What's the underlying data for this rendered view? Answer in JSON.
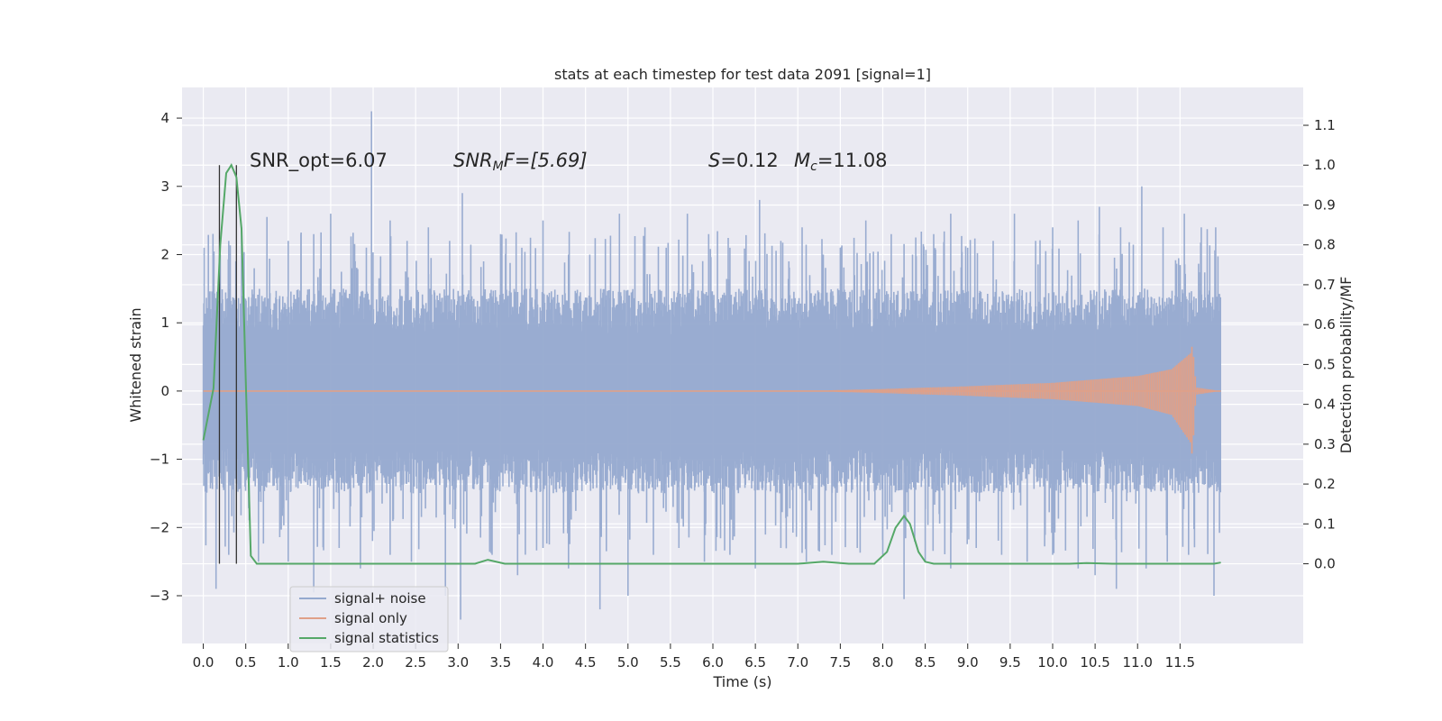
{
  "chart_data": {
    "type": "line",
    "title": "stats at each timestep for test data 2091 [signal=1]",
    "xlabel": "Time (s)",
    "ylabel": "Whitened strain",
    "y2label": "Detection probability/MF",
    "xlim": [
      -0.25,
      12.95
    ],
    "ylim": [
      -3.7,
      4.45
    ],
    "y2lim": [
      -0.2,
      1.195
    ],
    "xticks": [
      0.0,
      0.5,
      1.0,
      1.5,
      2.0,
      2.5,
      3.0,
      3.5,
      4.0,
      4.5,
      5.0,
      5.5,
      6.0,
      6.5,
      7.0,
      7.5,
      8.0,
      8.5,
      9.0,
      9.5,
      10.0,
      10.5,
      11.0,
      11.5
    ],
    "xtick_labels": [
      "0.0",
      "0.5",
      "1.0",
      "1.5",
      "2.0",
      "2.5",
      "3.0",
      "3.5",
      "4.0",
      "4.5",
      "5.0",
      "5.5",
      "6.0",
      "6.5",
      "7.0",
      "7.5",
      "8.0",
      "8.5",
      "9.0",
      "9.5",
      "10.0",
      "10.5",
      "11.0",
      "11.5"
    ],
    "yticks": [
      4,
      3,
      2,
      1,
      0,
      -1,
      -2,
      -3
    ],
    "ytick_labels": [
      "4",
      "3",
      "2",
      "1",
      "0",
      "−1",
      "−2",
      "−3"
    ],
    "y2ticks": [
      1.1,
      1.0,
      0.9,
      0.8,
      0.7,
      0.6,
      0.5,
      0.4,
      0.3,
      0.2,
      0.1,
      0.0
    ],
    "y2tick_labels": [
      "1.1",
      "1.0",
      "0.9",
      "0.8",
      "0.7",
      "0.6",
      "0.5",
      "0.4",
      "0.3",
      "0.2",
      "0.1",
      "0.0"
    ],
    "grid": true,
    "legend_position": "lower-left",
    "annotations": {
      "snr_opt": "SNR_opt=6.07",
      "snr_mf_main": "SNR",
      "snr_mf_sub": "M",
      "snr_mf_rest": "F=[5.69]",
      "s_symbol": "S",
      "s_value": "=0.12",
      "mc_symbol": "M",
      "mc_sub": "c",
      "mc_value": "=11.08"
    },
    "series": [
      {
        "name": "signal+ noise",
        "color": "#95a9cf",
        "x_range": [
          0.0,
          11.98
        ],
        "core_amplitude": 1.5,
        "spikes": [
          {
            "x": 0.01,
            "y": 2.1
          },
          {
            "x": 0.12,
            "y": 1.7
          },
          {
            "x": 0.2,
            "y": 2.0
          },
          {
            "x": 0.3,
            "y": 2.2
          },
          {
            "x": 0.45,
            "y": 2.4
          },
          {
            "x": 0.6,
            "y": 1.8
          },
          {
            "x": 0.75,
            "y": 2.55
          },
          {
            "x": 1.0,
            "y": 2.2
          },
          {
            "x": 1.15,
            "y": 2.3
          },
          {
            "x": 1.3,
            "y": 2.3
          },
          {
            "x": 1.5,
            "y": 2.6
          },
          {
            "x": 1.75,
            "y": 1.8
          },
          {
            "x": 1.98,
            "y": 4.1
          },
          {
            "x": 2.2,
            "y": 2.5
          },
          {
            "x": 2.4,
            "y": 2.2
          },
          {
            "x": 2.65,
            "y": 2.4
          },
          {
            "x": 2.9,
            "y": 2.2
          },
          {
            "x": 3.05,
            "y": 2.9
          },
          {
            "x": 3.3,
            "y": 1.9
          },
          {
            "x": 3.5,
            "y": 2.3
          },
          {
            "x": 3.75,
            "y": 2.1
          },
          {
            "x": 4.0,
            "y": 2.5
          },
          {
            "x": 4.3,
            "y": 2.0
          },
          {
            "x": 4.55,
            "y": 2.0
          },
          {
            "x": 4.9,
            "y": 2.6
          },
          {
            "x": 5.2,
            "y": 2.4
          },
          {
            "x": 5.45,
            "y": 2.1
          },
          {
            "x": 5.7,
            "y": 2.6
          },
          {
            "x": 5.95,
            "y": 2.3
          },
          {
            "x": 6.2,
            "y": 2.1
          },
          {
            "x": 6.55,
            "y": 2.8
          },
          {
            "x": 6.8,
            "y": 2.2
          },
          {
            "x": 7.05,
            "y": 2.4
          },
          {
            "x": 7.3,
            "y": 2.0
          },
          {
            "x": 7.5,
            "y": 2.1
          },
          {
            "x": 7.8,
            "y": 2.5
          },
          {
            "x": 8.1,
            "y": 2.3
          },
          {
            "x": 8.35,
            "y": 2.0
          },
          {
            "x": 8.6,
            "y": 2.3
          },
          {
            "x": 8.8,
            "y": 2.6
          },
          {
            "x": 9.0,
            "y": 2.1
          },
          {
            "x": 9.3,
            "y": 2.2
          },
          {
            "x": 9.55,
            "y": 2.6
          },
          {
            "x": 9.8,
            "y": 2.2
          },
          {
            "x": 10.0,
            "y": 2.4
          },
          {
            "x": 10.3,
            "y": 2.5
          },
          {
            "x": 10.55,
            "y": 2.7
          },
          {
            "x": 10.8,
            "y": 2.4
          },
          {
            "x": 11.05,
            "y": 3.0
          },
          {
            "x": 11.3,
            "y": 2.4
          },
          {
            "x": 11.55,
            "y": 2.6
          },
          {
            "x": 11.75,
            "y": 2.4
          },
          {
            "x": 11.92,
            "y": 2.4
          },
          {
            "x": 0.15,
            "y": -2.9
          },
          {
            "x": 0.3,
            "y": -2.4
          },
          {
            "x": 0.65,
            "y": -2.5
          },
          {
            "x": 1.0,
            "y": -2.5
          },
          {
            "x": 1.3,
            "y": -2.95
          },
          {
            "x": 1.6,
            "y": -2.3
          },
          {
            "x": 1.85,
            "y": -2.6
          },
          {
            "x": 2.2,
            "y": -2.4
          },
          {
            "x": 2.45,
            "y": -2.5
          },
          {
            "x": 2.85,
            "y": -3.0
          },
          {
            "x": 3.03,
            "y": -3.35
          },
          {
            "x": 3.4,
            "y": -2.4
          },
          {
            "x": 3.7,
            "y": -2.7
          },
          {
            "x": 4.0,
            "y": -2.3
          },
          {
            "x": 4.3,
            "y": -2.6
          },
          {
            "x": 4.67,
            "y": -3.2
          },
          {
            "x": 5.0,
            "y": -3.0
          },
          {
            "x": 5.3,
            "y": -2.4
          },
          {
            "x": 5.6,
            "y": -2.3
          },
          {
            "x": 5.9,
            "y": -2.5
          },
          {
            "x": 6.2,
            "y": -2.4
          },
          {
            "x": 6.5,
            "y": -2.6
          },
          {
            "x": 6.8,
            "y": -2.3
          },
          {
            "x": 7.1,
            "y": -2.5
          },
          {
            "x": 7.4,
            "y": -2.4
          },
          {
            "x": 7.7,
            "y": -2.3
          },
          {
            "x": 8.0,
            "y": -2.4
          },
          {
            "x": 8.25,
            "y": -3.05
          },
          {
            "x": 8.5,
            "y": -2.5
          },
          {
            "x": 8.8,
            "y": -2.6
          },
          {
            "x": 9.1,
            "y": -2.3
          },
          {
            "x": 9.4,
            "y": -2.4
          },
          {
            "x": 9.7,
            "y": -2.5
          },
          {
            "x": 10.0,
            "y": -2.4
          },
          {
            "x": 10.3,
            "y": -2.6
          },
          {
            "x": 10.5,
            "y": -2.7
          },
          {
            "x": 10.75,
            "y": -2.9
          },
          {
            "x": 11.1,
            "y": -2.6
          },
          {
            "x": 11.35,
            "y": -2.5
          },
          {
            "x": 11.6,
            "y": -2.4
          },
          {
            "x": 11.9,
            "y": -3.0
          }
        ]
      },
      {
        "name": "signal only",
        "color": "#e0a088",
        "x_range": [
          0.0,
          11.98
        ],
        "envelope": [
          [
            0.0,
            0.0
          ],
          [
            7.0,
            0.0
          ],
          [
            8.0,
            0.03
          ],
          [
            9.0,
            0.07
          ],
          [
            10.0,
            0.12
          ],
          [
            11.0,
            0.22
          ],
          [
            11.4,
            0.32
          ],
          [
            11.62,
            0.55
          ],
          [
            11.65,
            0.7
          ],
          [
            11.67,
            0.3
          ],
          [
            11.7,
            0.05
          ],
          [
            11.98,
            0.0
          ]
        ],
        "neg_envelope": [
          [
            0.0,
            0.0
          ],
          [
            7.0,
            0.0
          ],
          [
            8.0,
            -0.03
          ],
          [
            9.0,
            -0.07
          ],
          [
            10.0,
            -0.12
          ],
          [
            11.0,
            -0.22
          ],
          [
            11.4,
            -0.35
          ],
          [
            11.62,
            -0.75
          ],
          [
            11.65,
            -1.0
          ],
          [
            11.67,
            -0.3
          ],
          [
            11.7,
            -0.05
          ],
          [
            11.98,
            0.0
          ]
        ]
      },
      {
        "name": "signal statistics",
        "color": "#55a868",
        "axis": "right",
        "x": [
          0.0,
          0.12,
          0.2,
          0.27,
          0.33,
          0.39,
          0.45,
          0.5,
          0.56,
          0.63,
          3.0,
          3.2,
          3.35,
          3.55,
          7.0,
          7.3,
          7.6,
          7.9,
          8.05,
          8.15,
          8.25,
          8.32,
          8.42,
          8.5,
          8.6,
          10.2,
          10.4,
          10.7,
          11.0,
          11.5,
          11.9,
          11.98
        ],
        "y": [
          0.31,
          0.44,
          0.8,
          0.98,
          1.0,
          0.97,
          0.84,
          0.46,
          0.02,
          0.0,
          0.0,
          0.0,
          0.01,
          0.0,
          0.0,
          0.005,
          0.0,
          0.0,
          0.03,
          0.09,
          0.12,
          0.1,
          0.03,
          0.005,
          0.0,
          0.0,
          0.002,
          0.0,
          0.0,
          0.0,
          0.0,
          0.003
        ]
      }
    ],
    "vertical_lines": [
      {
        "x": 0.19,
        "color": "#333333"
      },
      {
        "x": 0.39,
        "color": "#333333"
      }
    ]
  }
}
